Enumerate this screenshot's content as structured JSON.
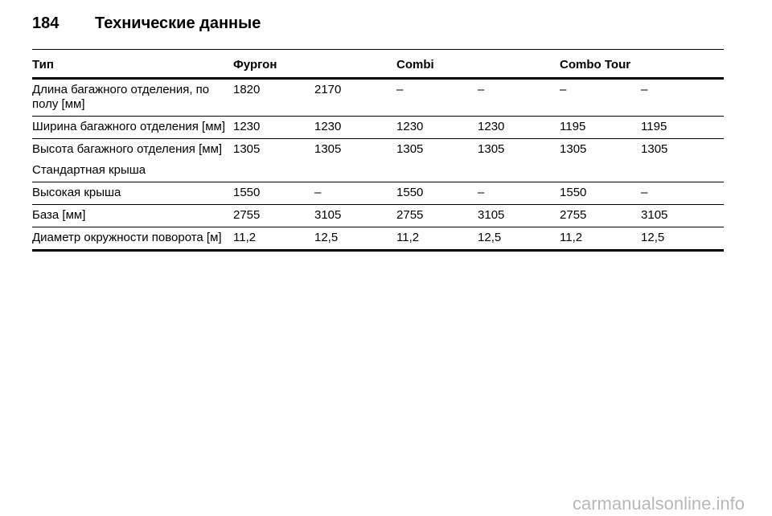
{
  "header": {
    "page_number": "184",
    "title": "Технические данные"
  },
  "table": {
    "columns": [
      "Тип",
      "Фургон",
      "Combi",
      "Combo Tour"
    ],
    "rows": [
      {
        "label": "Длина багажного отделения, по полу [мм]",
        "values": [
          "1820",
          "2170",
          "–",
          "–",
          "–",
          "–"
        ]
      },
      {
        "label": "Ширина багажного отделения [мм]",
        "values": [
          "1230",
          "1230",
          "1230",
          "1230",
          "1195",
          "1195"
        ]
      },
      {
        "label": "Высота багажного отделения [мм]",
        "sublabel": "Стандартная крыша",
        "values": [
          "1305",
          "1305",
          "1305",
          "1305",
          "1305",
          "1305"
        ]
      },
      {
        "label": "Высокая крыша",
        "values": [
          "1550",
          "–",
          "1550",
          "–",
          "1550",
          "–"
        ]
      },
      {
        "label": "База [мм]",
        "values": [
          "2755",
          "3105",
          "2755",
          "3105",
          "2755",
          "3105"
        ]
      },
      {
        "label": "Диаметр окружности поворота [м]",
        "values": [
          "11,2",
          "12,5",
          "11,2",
          "12,5",
          "11,2",
          "12,5"
        ]
      }
    ]
  },
  "watermark": "carmanualsonline.info"
}
